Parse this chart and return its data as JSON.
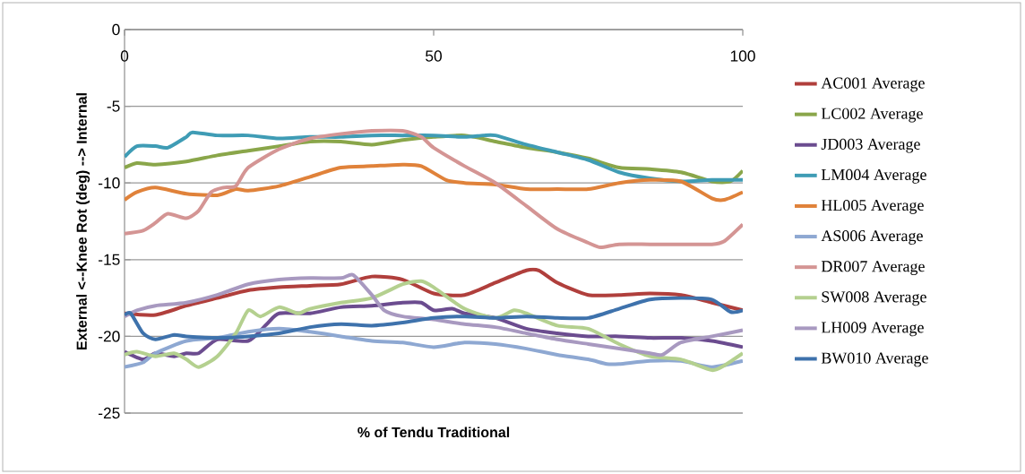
{
  "chart_data": {
    "type": "line",
    "xlabel": "% of Tendu Traditional",
    "ylabel": "External <--Knee Rot (deg) --> Internal",
    "xlim": [
      0,
      100
    ],
    "xticks": [
      0,
      50,
      100
    ],
    "ylim": [
      -25,
      0
    ],
    "yticks": [
      -25,
      -20,
      -15,
      -10,
      -5,
      0
    ],
    "grid": "y",
    "legend": "right",
    "line_style": "solid",
    "series": [
      {
        "name": "AC001 Average",
        "color": "#b03f3c",
        "x": [
          0,
          5,
          10,
          15,
          20,
          25,
          30,
          35,
          40,
          45,
          50,
          55,
          60,
          65,
          67,
          70,
          75,
          80,
          85,
          90,
          95,
          100
        ],
        "values": [
          -18.5,
          -18.6,
          -18.0,
          -17.5,
          -17.0,
          -16.8,
          -16.7,
          -16.6,
          -16.1,
          -16.3,
          -17.2,
          -17.3,
          -16.5,
          -15.7,
          -15.7,
          -16.5,
          -17.3,
          -17.3,
          -17.2,
          -17.3,
          -17.8,
          -18.3
        ]
      },
      {
        "name": "LC002 Average",
        "color": "#8aa64a",
        "x": [
          0,
          2,
          5,
          10,
          15,
          20,
          25,
          30,
          35,
          40,
          45,
          50,
          55,
          60,
          65,
          70,
          75,
          80,
          85,
          90,
          95,
          98,
          100
        ],
        "values": [
          -9.0,
          -8.7,
          -8.8,
          -8.6,
          -8.2,
          -7.9,
          -7.6,
          -7.3,
          -7.3,
          -7.5,
          -7.2,
          -7.0,
          -6.9,
          -7.3,
          -7.7,
          -8.0,
          -8.4,
          -9.0,
          -9.1,
          -9.3,
          -9.9,
          -9.9,
          -9.2
        ]
      },
      {
        "name": "JD003 Average",
        "color": "#6b4c8f",
        "x": [
          0,
          3,
          5,
          8,
          10,
          12,
          15,
          20,
          23,
          25,
          30,
          35,
          40,
          45,
          48,
          50,
          53,
          55,
          60,
          65,
          70,
          75,
          80,
          85,
          90,
          95,
          100
        ],
        "values": [
          -21.0,
          -21.5,
          -21.1,
          -21.3,
          -21.1,
          -21.1,
          -20.2,
          -20.3,
          -19.2,
          -18.5,
          -18.5,
          -18.1,
          -18.0,
          -17.8,
          -17.8,
          -18.3,
          -18.2,
          -18.5,
          -18.8,
          -19.5,
          -19.8,
          -20.0,
          -20.0,
          -20.1,
          -20.1,
          -20.3,
          -20.7
        ]
      },
      {
        "name": "LM004 Average",
        "color": "#3f9cb5",
        "x": [
          0,
          2,
          5,
          7,
          10,
          11,
          15,
          20,
          25,
          30,
          35,
          40,
          45,
          50,
          55,
          58,
          60,
          65,
          70,
          75,
          80,
          85,
          90,
          95,
          100
        ],
        "values": [
          -8.3,
          -7.6,
          -7.6,
          -7.7,
          -7.0,
          -6.7,
          -6.9,
          -6.9,
          -7.1,
          -7.0,
          -7.0,
          -6.9,
          -6.9,
          -6.9,
          -7.0,
          -6.9,
          -6.9,
          -7.5,
          -8.0,
          -8.5,
          -9.3,
          -9.7,
          -9.9,
          -9.8,
          -9.8
        ]
      },
      {
        "name": "HL005 Average",
        "color": "#e0823a",
        "x": [
          0,
          2,
          5,
          10,
          15,
          18,
          20,
          25,
          30,
          35,
          40,
          45,
          48,
          52,
          55,
          60,
          65,
          70,
          75,
          80,
          85,
          90,
          95,
          97,
          100
        ],
        "values": [
          -11.1,
          -10.6,
          -10.3,
          -10.7,
          -10.8,
          -10.4,
          -10.5,
          -10.2,
          -9.6,
          -9.0,
          -8.9,
          -8.8,
          -8.9,
          -9.8,
          -10.0,
          -10.1,
          -10.4,
          -10.4,
          -10.4,
          -10.0,
          -9.8,
          -9.9,
          -11.0,
          -11.1,
          -10.6
        ]
      },
      {
        "name": "AS006 Average",
        "color": "#8ea8d2",
        "x": [
          0,
          3,
          5,
          10,
          15,
          20,
          25,
          30,
          35,
          40,
          45,
          50,
          55,
          60,
          65,
          70,
          75,
          78,
          80,
          85,
          90,
          95,
          100
        ],
        "values": [
          -22.0,
          -21.7,
          -21.1,
          -20.3,
          -20.1,
          -19.7,
          -19.5,
          -19.7,
          -20.0,
          -20.3,
          -20.4,
          -20.7,
          -20.4,
          -20.5,
          -20.8,
          -21.2,
          -21.5,
          -21.8,
          -21.8,
          -21.6,
          -21.6,
          -22.0,
          -21.6
        ]
      },
      {
        "name": "DR007 Average",
        "color": "#d49594",
        "x": [
          0,
          3,
          5,
          7,
          10,
          12,
          14,
          16,
          18,
          20,
          25,
          30,
          35,
          40,
          45,
          48,
          50,
          55,
          60,
          65,
          70,
          75,
          77,
          80,
          85,
          90,
          95,
          97,
          100
        ],
        "values": [
          -13.3,
          -13.1,
          -12.6,
          -12.0,
          -12.3,
          -11.8,
          -10.6,
          -10.3,
          -10.2,
          -9.0,
          -7.8,
          -7.1,
          -6.8,
          -6.6,
          -6.6,
          -7.0,
          -7.7,
          -8.9,
          -10.0,
          -11.5,
          -13.0,
          -13.9,
          -14.2,
          -14.0,
          -14.0,
          -14.0,
          -14.0,
          -13.8,
          -12.7
        ]
      },
      {
        "name": "SW008 Average",
        "color": "#b4d08f",
        "x": [
          0,
          2,
          5,
          8,
          10,
          12,
          15,
          18,
          20,
          22,
          25,
          28,
          30,
          35,
          40,
          45,
          48,
          50,
          55,
          60,
          63,
          65,
          70,
          75,
          80,
          85,
          90,
          95,
          97,
          100
        ],
        "values": [
          -21.2,
          -21.0,
          -21.3,
          -21.1,
          -21.5,
          -22.0,
          -21.3,
          -19.8,
          -18.3,
          -18.7,
          -18.1,
          -18.5,
          -18.2,
          -17.8,
          -17.5,
          -16.6,
          -16.4,
          -16.8,
          -18.2,
          -18.8,
          -18.3,
          -18.5,
          -19.3,
          -19.5,
          -20.5,
          -21.3,
          -21.5,
          -22.2,
          -21.9,
          -21.1
        ]
      },
      {
        "name": "LH009 Average",
        "color": "#a899c0",
        "x": [
          0,
          2,
          5,
          10,
          15,
          20,
          25,
          30,
          35,
          37,
          40,
          42,
          45,
          50,
          55,
          60,
          65,
          70,
          75,
          80,
          85,
          87,
          90,
          95,
          100
        ],
        "values": [
          -18.7,
          -18.3,
          -18.0,
          -17.8,
          -17.3,
          -16.6,
          -16.3,
          -16.2,
          -16.2,
          -16.0,
          -17.3,
          -18.3,
          -18.7,
          -18.9,
          -19.2,
          -19.4,
          -19.8,
          -20.2,
          -20.5,
          -20.8,
          -21.1,
          -21.2,
          -20.4,
          -20.0,
          -19.6
        ]
      },
      {
        "name": "BW010 Average",
        "color": "#3e72ac",
        "x": [
          0,
          1,
          3,
          5,
          8,
          10,
          15,
          20,
          25,
          30,
          35,
          40,
          45,
          50,
          55,
          60,
          65,
          70,
          75,
          80,
          85,
          90,
          95,
          98,
          100
        ],
        "values": [
          -18.6,
          -18.5,
          -19.8,
          -20.2,
          -19.9,
          -20.0,
          -20.1,
          -20.0,
          -19.8,
          -19.4,
          -19.2,
          -19.3,
          -19.1,
          -18.8,
          -18.7,
          -18.8,
          -18.7,
          -18.8,
          -18.8,
          -18.2,
          -17.6,
          -17.5,
          -17.6,
          -18.4,
          -18.3
        ]
      }
    ]
  }
}
